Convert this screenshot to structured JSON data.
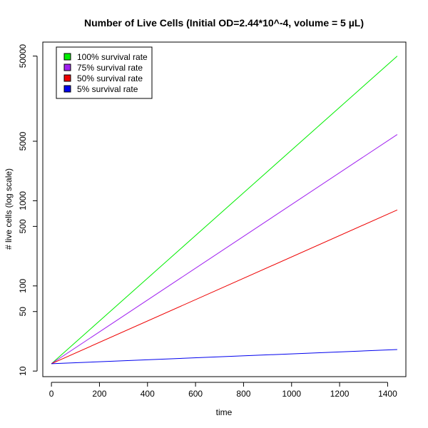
{
  "chart_data": {
    "type": "line",
    "title": "Number of Live Cells (Initial OD=2.44*10^-4, volume = 5 µL)",
    "xlabel": "time",
    "ylabel": "# live cells (log scale)",
    "y_scale": "log",
    "xlim": [
      -36,
      1476
    ],
    "ylim": [
      8.6,
      73000
    ],
    "x_ticks": [
      0,
      200,
      400,
      600,
      800,
      1000,
      1200,
      1400
    ],
    "y_ticks": [
      10,
      50,
      100,
      500,
      1000,
      5000,
      50000
    ],
    "legend_position": "top-left",
    "series": [
      {
        "name": "100% survival rate",
        "color": "#00ee00",
        "x": [
          0,
          1440
        ],
        "y": [
          12.2,
          50000
        ]
      },
      {
        "name": "75% survival rate",
        "color": "#a020f0",
        "x": [
          0,
          1440
        ],
        "y": [
          12.2,
          6000
        ]
      },
      {
        "name": "50% survival rate",
        "color": "#ee0000",
        "x": [
          0,
          1440
        ],
        "y": [
          12.2,
          780
        ]
      },
      {
        "name": "5% survival rate",
        "color": "#0000ee",
        "x": [
          0,
          1440
        ],
        "y": [
          12.2,
          17.9
        ]
      }
    ]
  }
}
